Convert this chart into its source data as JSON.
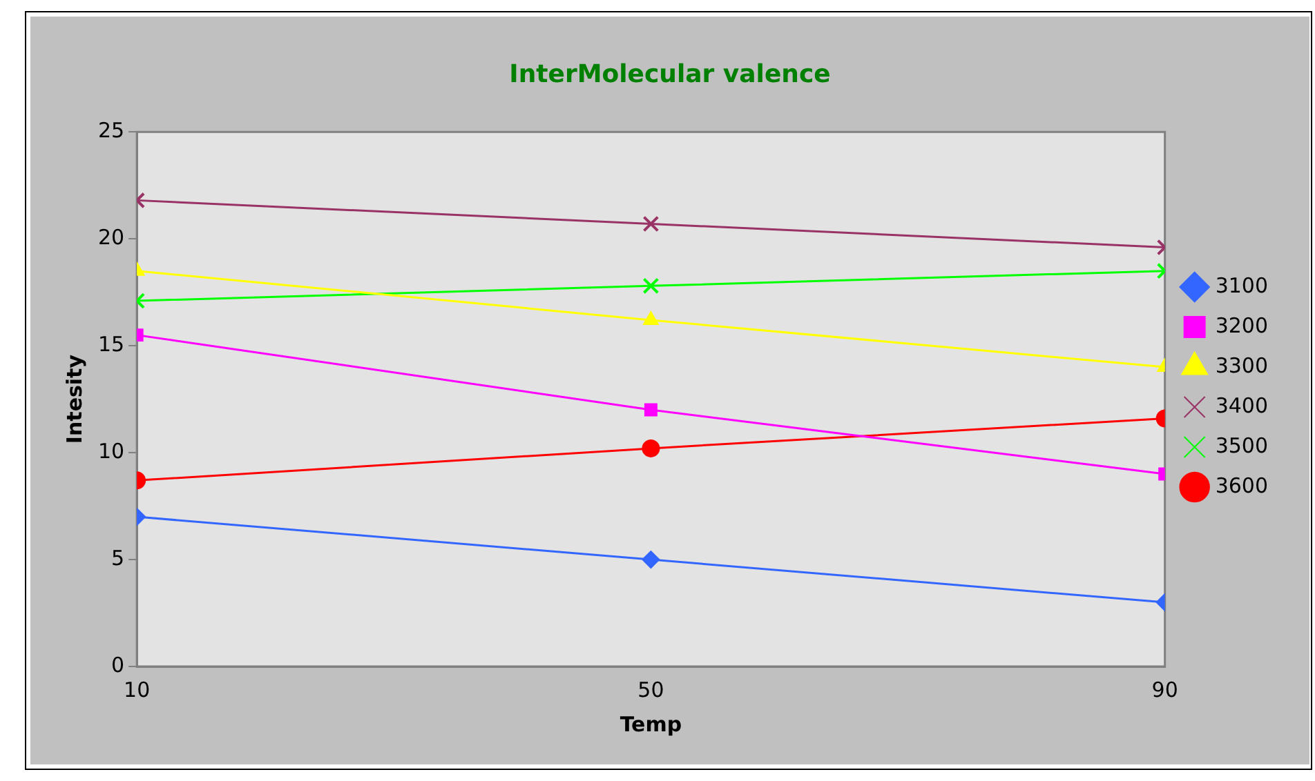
{
  "chart_data": {
    "type": "line",
    "title": "InterMolecular valence",
    "xlabel": "Temp",
    "ylabel": "Intesity",
    "x": [
      10,
      50,
      90
    ],
    "xlim": [
      10,
      90
    ],
    "xticks": [
      10,
      50,
      90
    ],
    "ylim": [
      0,
      25
    ],
    "yticks": [
      0,
      5,
      10,
      15,
      20,
      25
    ],
    "grid": false,
    "legend": "right",
    "series": [
      {
        "name": "3100",
        "color": "#3366ff",
        "marker": "diamond",
        "values": [
          7,
          5,
          3
        ]
      },
      {
        "name": "3200",
        "color": "#ff00ff",
        "marker": "square",
        "values": [
          15.5,
          12,
          9
        ]
      },
      {
        "name": "3300",
        "color": "#ffff00",
        "marker": "triangle",
        "values": [
          18.5,
          16.2,
          14
        ]
      },
      {
        "name": "3400",
        "color": "#993366",
        "marker": "cross",
        "values": [
          21.8,
          20.7,
          19.6
        ]
      },
      {
        "name": "3500",
        "color": "#00ff00",
        "marker": "cross",
        "values": [
          17.1,
          17.8,
          18.5
        ]
      },
      {
        "name": "3600",
        "color": "#ff0000",
        "marker": "circle",
        "values": [
          8.7,
          10.2,
          11.6
        ]
      }
    ]
  }
}
